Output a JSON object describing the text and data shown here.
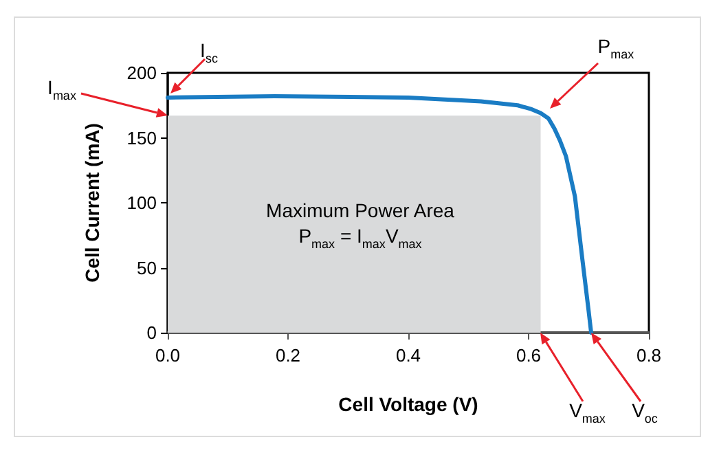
{
  "chart_data": {
    "type": "line",
    "xlabel": "Cell Voltage (V)",
    "ylabel": "Cell Current (mA)",
    "series": [
      {
        "type": "area",
        "color": "#d9dadb",
        "x": [
          0,
          0.62
        ],
        "values": [
          167,
          167
        ]
      },
      {
        "color": "#1a7cc4",
        "x": [
          0,
          0.178,
          0.4,
          0.521,
          0.582,
          0.605,
          0.62,
          0.633,
          0.643,
          0.652,
          0.662,
          0.677,
          0.689,
          0.7,
          0.704
        ],
        "values": [
          181,
          182,
          181,
          178,
          175,
          172,
          169,
          165,
          157,
          148,
          136,
          105,
          58,
          16,
          0
        ]
      }
    ],
    "xlim": [
      0,
      0.8
    ],
    "xticks": [
      {
        "value": 0,
        "label": "0.0"
      },
      0.2,
      0.4,
      0.6,
      0.8
    ],
    "ylim": [
      0,
      200
    ],
    "yticks": [
      0,
      50,
      100,
      150,
      200
    ],
    "marker": "none",
    "line_style": "solid",
    "grid": false,
    "annotations": [
      {
        "text": "I$_{sc}$",
        "x": 0,
        "y": 181
      },
      {
        "text": "I$_{max}$",
        "x": 0,
        "y": 167
      },
      {
        "text": "P$_{max}$",
        "x": 0.633,
        "y": 172
      },
      {
        "text": "V$_{max}$",
        "x": 0.62,
        "y": 0
      },
      {
        "text": "V$_{oc}$",
        "x": 0.704,
        "y": 0
      },
      "Maximum Power Area",
      "P$_{max}$ = I$_{max}$V$_{max}$"
    ]
  }
}
